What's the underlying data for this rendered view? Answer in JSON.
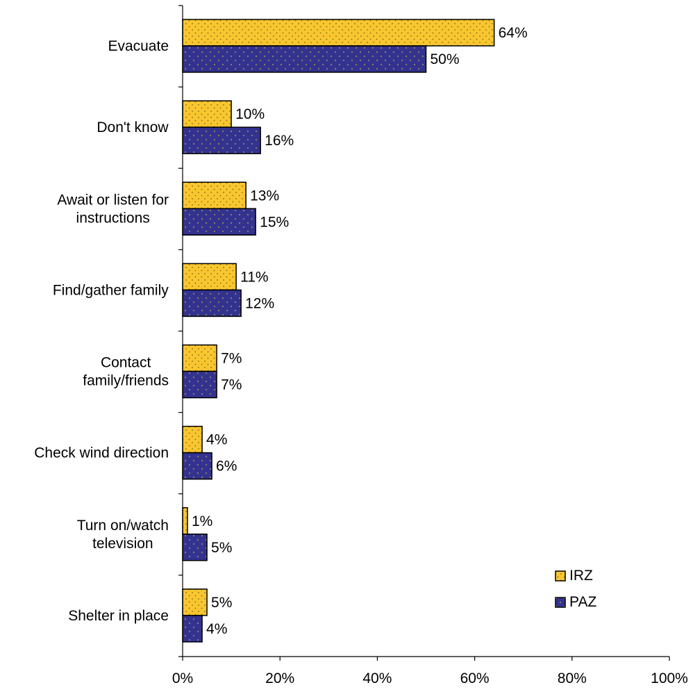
{
  "chart_data": {
    "type": "bar",
    "orientation": "horizontal",
    "title": "",
    "xlabel": "",
    "ylabel": "",
    "xlim": [
      0,
      100
    ],
    "x_unit": "%",
    "x_ticks": [
      "0%",
      "20%",
      "40%",
      "60%",
      "80%",
      "100%"
    ],
    "x_tick_values": [
      0,
      20,
      40,
      60,
      80,
      100
    ],
    "grid": false,
    "legend_position": "bottom-right",
    "categories": [
      [
        "Evacuate"
      ],
      [
        "Don't know"
      ],
      [
        "Await or listen for",
        "instructions"
      ],
      [
        "Find/gather family"
      ],
      [
        "Contact",
        "family/friends"
      ],
      [
        "Check wind direction"
      ],
      [
        "Turn on/watch",
        "television"
      ],
      [
        "Shelter in place"
      ]
    ],
    "series": [
      {
        "name": "IRZ",
        "color": "#F8C630",
        "dot_color": "#8A6A10",
        "values": [
          64,
          10,
          13,
          11,
          7,
          4,
          1,
          5
        ],
        "labels": [
          "64%",
          "10%",
          "13%",
          "11%",
          "7%",
          "4%",
          "1%",
          "5%"
        ]
      },
      {
        "name": "PAZ",
        "color": "#33338F",
        "dot_color": "#C9B04A",
        "values": [
          50,
          16,
          15,
          12,
          7,
          6,
          5,
          4
        ],
        "labels": [
          "50%",
          "16%",
          "15%",
          "12%",
          "7%",
          "6%",
          "5%",
          "4%"
        ]
      }
    ]
  }
}
